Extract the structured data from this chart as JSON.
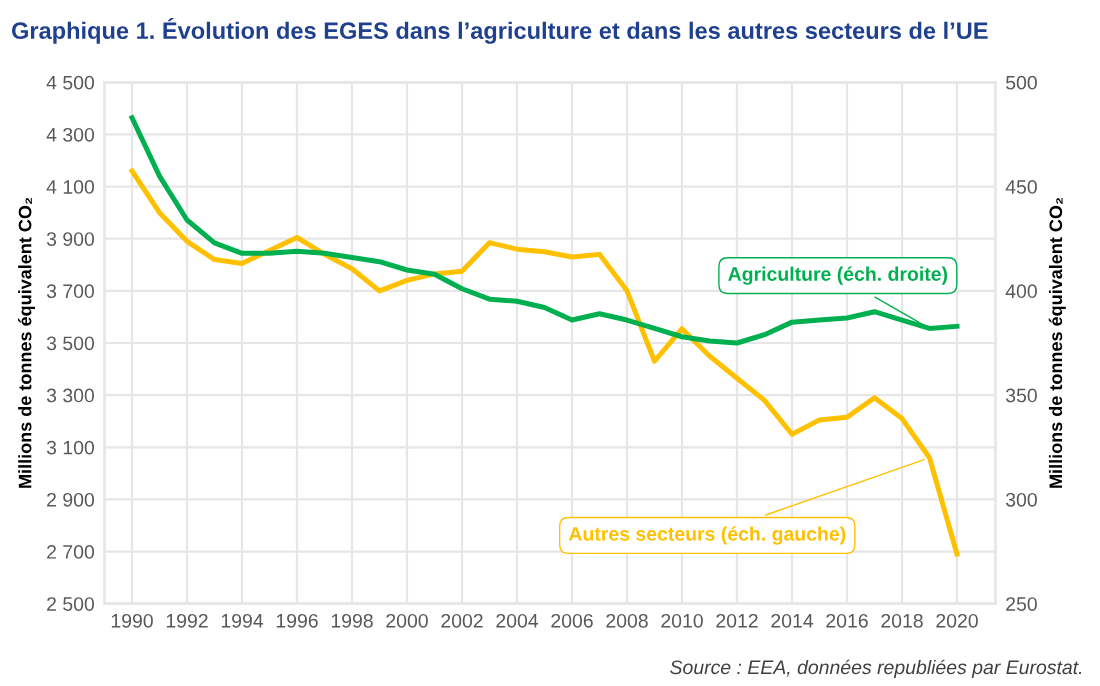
{
  "chart_data": {
    "type": "line",
    "title": "Graphique 1. Évolution des EGES dans l’agriculture et dans les autres secteurs de l’UE",
    "ylabel": "Millions de tonnes équivalent CO₂",
    "y2label": "Millions de tonnes équivalent CO₂",
    "x": [
      1990,
      1991,
      1992,
      1993,
      1994,
      1995,
      1996,
      1997,
      1998,
      1999,
      2000,
      2001,
      2002,
      2003,
      2004,
      2005,
      2006,
      2007,
      2008,
      2009,
      2010,
      2011,
      2012,
      2013,
      2014,
      2015,
      2016,
      2017,
      2018,
      2019,
      2020
    ],
    "series": [
      {
        "name": "Autres secteurs (éch. gauche)",
        "color": "#ffc000",
        "axis": "y",
        "values": [
          4160,
          4000,
          3890,
          3820,
          3805,
          3855,
          3905,
          3840,
          3785,
          3700,
          3740,
          3765,
          3775,
          3885,
          3860,
          3850,
          3830,
          3840,
          3700,
          3430,
          3555,
          3450,
          3365,
          3280,
          3150,
          3205,
          3215,
          3290,
          3210,
          3060,
          2690
        ]
      },
      {
        "name": "Agriculture (éch. droite)",
        "color": "#00b050",
        "axis": "y2",
        "values": [
          483,
          455,
          434,
          423,
          418,
          418,
          419,
          418,
          416,
          414,
          410,
          408,
          401,
          396,
          395,
          392,
          386,
          389,
          386,
          382,
          378,
          376,
          375,
          379,
          385,
          386,
          387,
          390,
          386,
          382,
          383
        ]
      }
    ],
    "xlim": [
      1989,
      2021.4
    ],
    "xticks": [
      1990,
      1992,
      1994,
      1996,
      1998,
      2000,
      2002,
      2004,
      2006,
      2008,
      2010,
      2012,
      2014,
      2016,
      2018,
      2020
    ],
    "ylim": [
      2500,
      4500
    ],
    "yticks": [
      {
        "value": 2500,
        "label": "2 500"
      },
      {
        "value": 2700,
        "label": "2 700"
      },
      {
        "value": 2900,
        "label": "2 900"
      },
      {
        "value": 3100,
        "label": "3 100"
      },
      {
        "value": 3300,
        "label": "3 300"
      },
      {
        "value": 3500,
        "label": "3 500"
      },
      {
        "value": 3700,
        "label": "3 700"
      },
      {
        "value": 3900,
        "label": "3 900"
      },
      {
        "value": 4100,
        "label": "4 100"
      },
      {
        "value": 4300,
        "label": "4 300"
      },
      {
        "value": 4500,
        "label": "4 500"
      }
    ],
    "y2lim": [
      250,
      500
    ],
    "y2ticks": [
      250,
      300,
      350,
      400,
      450,
      500
    ],
    "grid": true,
    "legend": false,
    "annotations": [
      "Source : EEA, données republiées par Eurostat."
    ]
  }
}
